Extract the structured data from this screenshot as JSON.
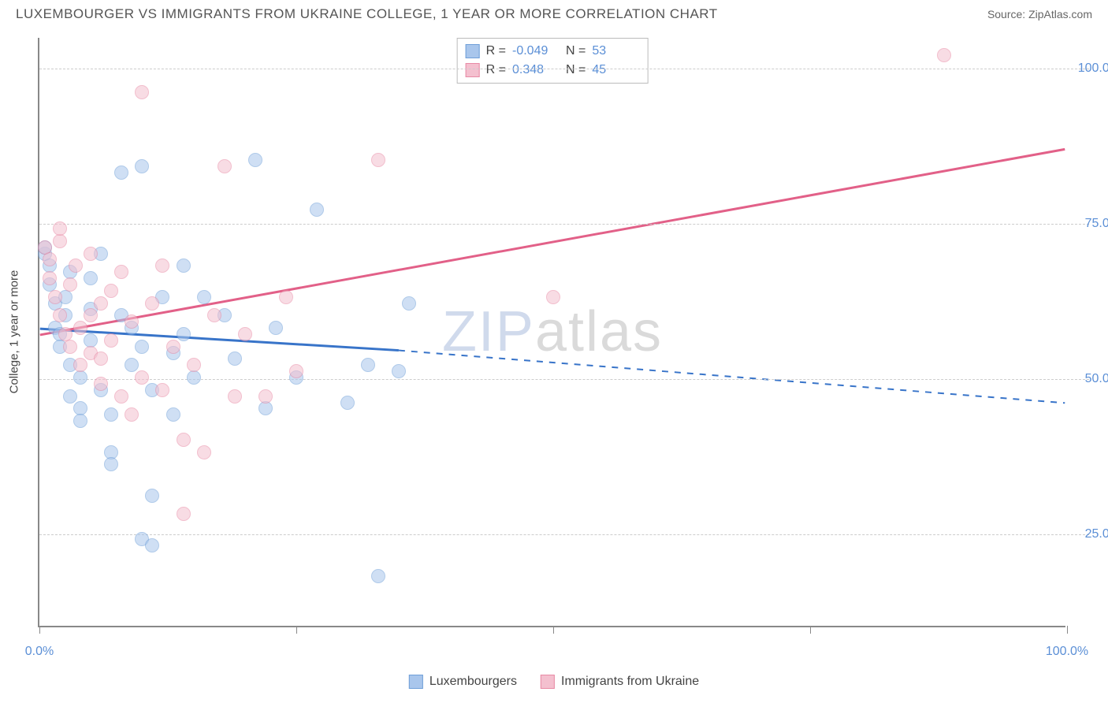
{
  "header": {
    "title": "LUXEMBOURGER VS IMMIGRANTS FROM UKRAINE COLLEGE, 1 YEAR OR MORE CORRELATION CHART",
    "source_label": "Source: ",
    "source_name": "ZipAtlas.com"
  },
  "watermark": {
    "part1": "ZIP",
    "part2": "atlas"
  },
  "chart": {
    "type": "scatter-with-regression",
    "y_axis_title": "College, 1 year or more",
    "xlim": [
      0,
      100
    ],
    "ylim": [
      10,
      105
    ],
    "x_ticks": [
      0,
      50,
      100
    ],
    "x_tick_labels": [
      "0.0%",
      "",
      "100.0%"
    ],
    "y_gridlines": [
      25,
      50,
      75,
      100
    ],
    "y_tick_labels": [
      "25.0%",
      "50.0%",
      "75.0%",
      "100.0%"
    ],
    "grid_color": "#cccccc",
    "axis_color": "#888888",
    "background": "#ffffff",
    "marker_radius": 9,
    "marker_opacity": 0.55,
    "series": [
      {
        "id": "luxembourgers",
        "label": "Luxembourgers",
        "color_fill": "#a9c6ec",
        "color_stroke": "#6f9fd8",
        "line_color": "#3874c9",
        "R": "-0.049",
        "N": "53",
        "regression": {
          "x1": 0,
          "y1": 58,
          "x2_solid": 35,
          "y2_solid": 54.5,
          "x2": 100,
          "y2": 46
        },
        "points": [
          [
            0.5,
            70
          ],
          [
            0.5,
            71
          ],
          [
            1,
            68
          ],
          [
            1,
            65
          ],
          [
            1.5,
            62
          ],
          [
            1.5,
            58
          ],
          [
            2,
            57
          ],
          [
            2,
            55
          ],
          [
            2.5,
            60
          ],
          [
            2.5,
            63
          ],
          [
            3,
            67
          ],
          [
            3,
            52
          ],
          [
            3,
            47
          ],
          [
            4,
            50
          ],
          [
            4,
            45
          ],
          [
            4,
            43
          ],
          [
            5,
            56
          ],
          [
            5,
            66
          ],
          [
            5,
            61
          ],
          [
            6,
            70
          ],
          [
            6,
            48
          ],
          [
            7,
            44
          ],
          [
            7,
            38
          ],
          [
            7,
            36
          ],
          [
            8,
            83
          ],
          [
            8,
            60
          ],
          [
            9,
            58
          ],
          [
            9,
            52
          ],
          [
            10,
            84
          ],
          [
            10,
            55
          ],
          [
            10,
            24
          ],
          [
            11,
            23
          ],
          [
            11,
            31
          ],
          [
            11,
            48
          ],
          [
            12,
            63
          ],
          [
            13,
            54
          ],
          [
            13,
            44
          ],
          [
            14,
            68
          ],
          [
            14,
            57
          ],
          [
            15,
            50
          ],
          [
            16,
            63
          ],
          [
            18,
            60
          ],
          [
            19,
            53
          ],
          [
            21,
            85
          ],
          [
            22,
            45
          ],
          [
            23,
            58
          ],
          [
            25,
            50
          ],
          [
            27,
            77
          ],
          [
            30,
            46
          ],
          [
            32,
            52
          ],
          [
            33,
            18
          ],
          [
            35,
            51
          ],
          [
            36,
            62
          ]
        ]
      },
      {
        "id": "ukraine",
        "label": "Immigrants from Ukraine",
        "color_fill": "#f4c0cf",
        "color_stroke": "#e88aa5",
        "line_color": "#e26088",
        "R": "0.348",
        "N": "45",
        "regression": {
          "x1": 0,
          "y1": 57,
          "x2_solid": 100,
          "y2_solid": 87,
          "x2": 100,
          "y2": 87
        },
        "points": [
          [
            0.5,
            71
          ],
          [
            1,
            69
          ],
          [
            1,
            66
          ],
          [
            1.5,
            63
          ],
          [
            2,
            60
          ],
          [
            2,
            72
          ],
          [
            2.5,
            57
          ],
          [
            3,
            55
          ],
          [
            3,
            65
          ],
          [
            3.5,
            68
          ],
          [
            4,
            58
          ],
          [
            4,
            52
          ],
          [
            5,
            54
          ],
          [
            5,
            70
          ],
          [
            5,
            60
          ],
          [
            6,
            62
          ],
          [
            6,
            49
          ],
          [
            7,
            56
          ],
          [
            7,
            64
          ],
          [
            8,
            67
          ],
          [
            8,
            47
          ],
          [
            9,
            59
          ],
          [
            9,
            44
          ],
          [
            10,
            50
          ],
          [
            10,
            96
          ],
          [
            11,
            62
          ],
          [
            12,
            48
          ],
          [
            12,
            68
          ],
          [
            13,
            55
          ],
          [
            14,
            40
          ],
          [
            14,
            28
          ],
          [
            15,
            52
          ],
          [
            16,
            38
          ],
          [
            17,
            60
          ],
          [
            18,
            84
          ],
          [
            19,
            47
          ],
          [
            20,
            57
          ],
          [
            22,
            47
          ],
          [
            24,
            63
          ],
          [
            25,
            51
          ],
          [
            33,
            85
          ],
          [
            50,
            63
          ],
          [
            88,
            102
          ],
          [
            2,
            74
          ],
          [
            6,
            53
          ]
        ]
      }
    ]
  },
  "stats_legend": {
    "r_label": "R =",
    "n_label": "N ="
  },
  "bottom_legend_labels": [
    "Luxembourgers",
    "Immigrants from Ukraine"
  ]
}
